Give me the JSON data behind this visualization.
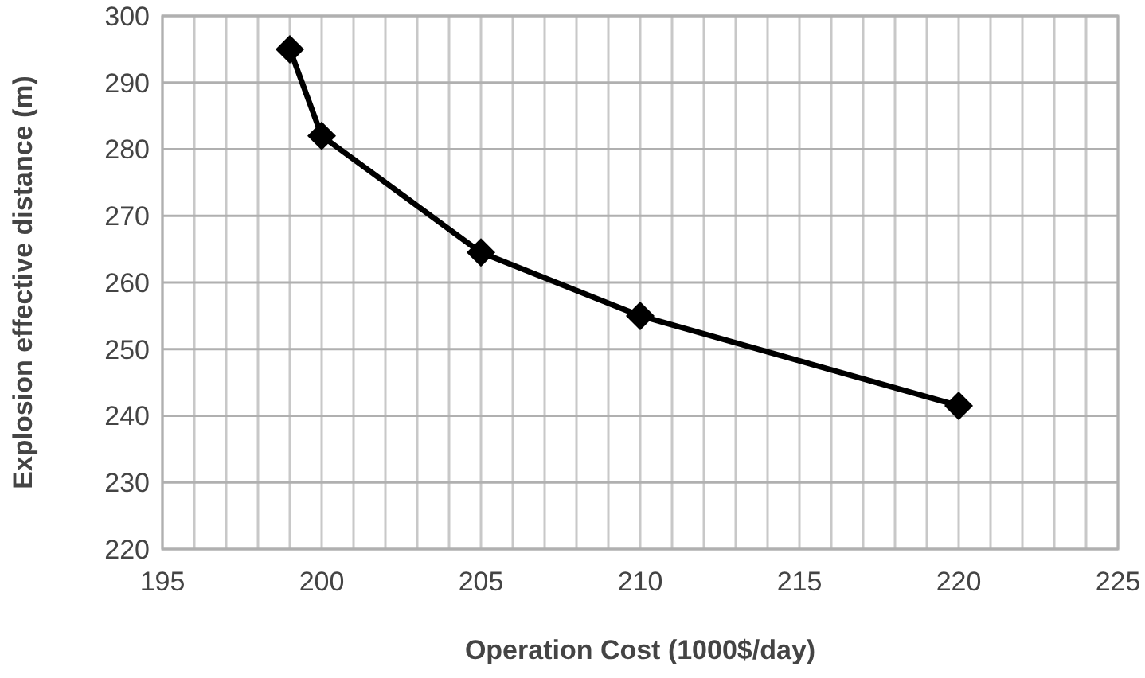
{
  "chart_data": {
    "type": "line",
    "xlabel": "Operation Cost (1000$/day)",
    "ylabel": "Explosion effective distance (m)",
    "x": [
      199,
      200,
      205,
      210,
      220
    ],
    "series": [
      {
        "color": "#000000",
        "values": [
          295,
          282,
          264.5,
          255,
          241.5
        ]
      }
    ],
    "xlim": [
      195,
      225
    ],
    "xticks": [
      195,
      {
        "value": 196,
        "label": null
      },
      {
        "value": 197,
        "label": null
      },
      {
        "value": 198,
        "label": null
      },
      {
        "value": 199,
        "label": null
      },
      200,
      {
        "value": 201,
        "label": null
      },
      {
        "value": 202,
        "label": null
      },
      {
        "value": 203,
        "label": null
      },
      {
        "value": 204,
        "label": null
      },
      205,
      {
        "value": 206,
        "label": null
      },
      {
        "value": 207,
        "label": null
      },
      {
        "value": 208,
        "label": null
      },
      {
        "value": 209,
        "label": null
      },
      210,
      {
        "value": 211,
        "label": null
      },
      {
        "value": 212,
        "label": null
      },
      {
        "value": 213,
        "label": null
      },
      {
        "value": 214,
        "label": null
      },
      215,
      {
        "value": 216,
        "label": null
      },
      {
        "value": 217,
        "label": null
      },
      {
        "value": 218,
        "label": null
      },
      {
        "value": 219,
        "label": null
      },
      220,
      {
        "value": 221,
        "label": null
      },
      {
        "value": 222,
        "label": null
      },
      {
        "value": 223,
        "label": null
      },
      {
        "value": 224,
        "label": null
      },
      225
    ],
    "ylim": [
      220,
      300
    ],
    "yticks": [
      220,
      230,
      240,
      250,
      260,
      270,
      280,
      290,
      300
    ],
    "grid": true,
    "marker": "diamond",
    "line_style": "solid"
  }
}
